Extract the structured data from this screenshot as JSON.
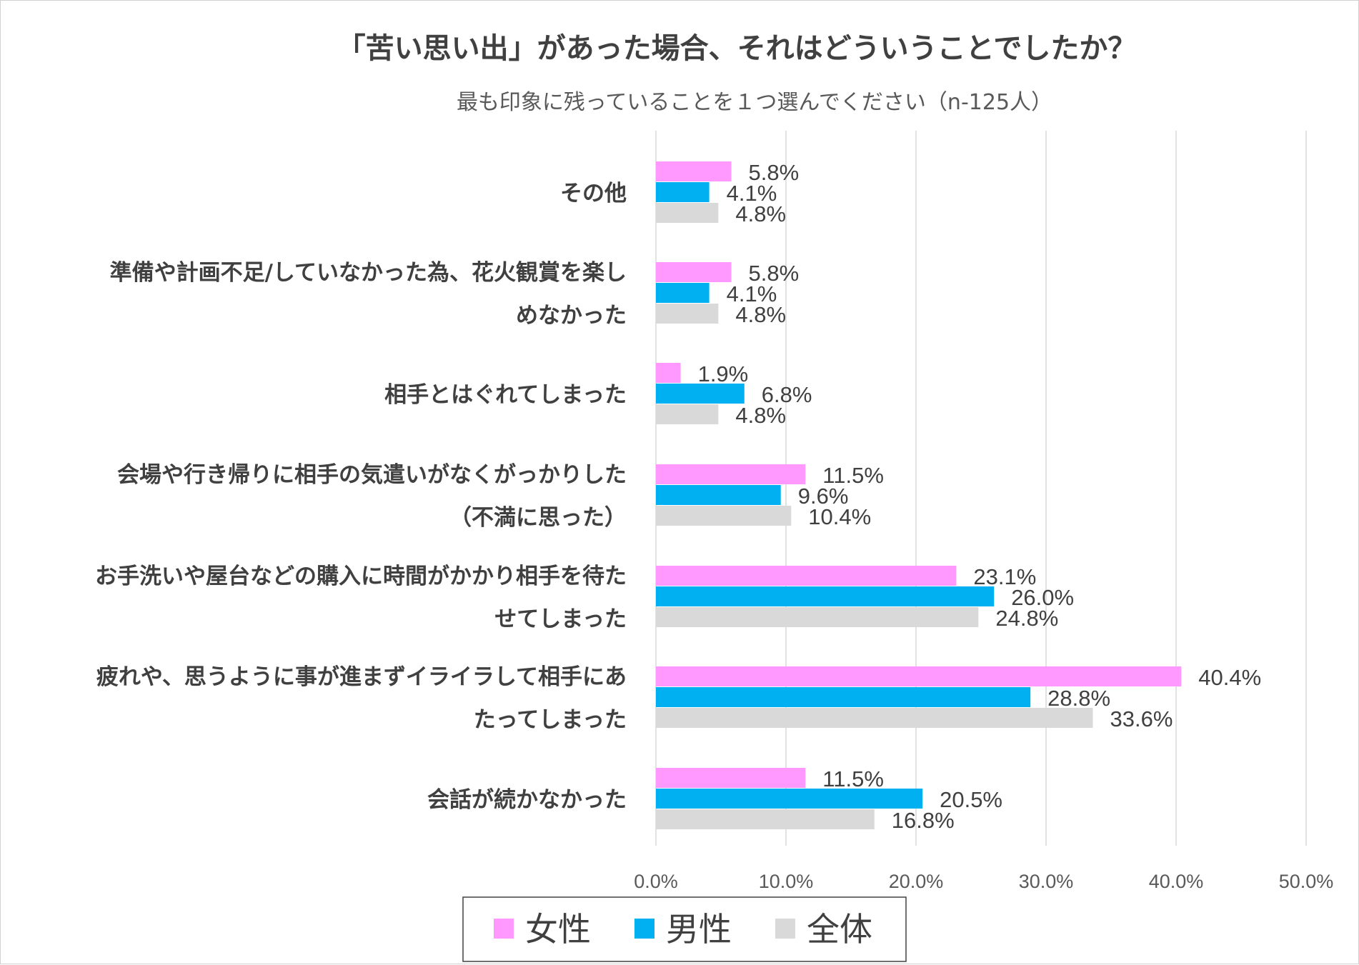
{
  "chart_data": {
    "type": "bar",
    "orientation": "horizontal",
    "title": "「苦い思い出」があった場合、それはどういうことでしたか？",
    "subtitle": "最も印象に残っていることを１つ選んでください（n-125人）",
    "categories": [
      [
        "その他"
      ],
      [
        "準備や計画不足/していなかった為、花火観賞を楽し",
        "めなかった"
      ],
      [
        "相手とはぐれてしまった"
      ],
      [
        "会場や行き帰りに相手の気遣いがなくがっかりした",
        "（不満に思った）"
      ],
      [
        "お手洗いや屋台などの購入に時間がかかり相手を待た",
        "せてしまった"
      ],
      [
        "疲れや、思うように事が進まずイライラして相手にあ",
        "たってしまった"
      ],
      [
        "会話が続かなかった"
      ]
    ],
    "series": [
      {
        "name": "女性",
        "color": "#ff99ff",
        "values": [
          5.8,
          5.8,
          1.9,
          11.5,
          23.1,
          40.4,
          11.5
        ],
        "labels": [
          "5.8%",
          "5.8%",
          "1.9%",
          "11.5%",
          "23.1%",
          "40.4%",
          "11.5%"
        ]
      },
      {
        "name": "男性",
        "color": "#00b0f0",
        "values": [
          4.1,
          4.1,
          6.8,
          9.6,
          26.0,
          28.8,
          20.5
        ],
        "labels": [
          "4.1%",
          "4.1%",
          "6.8%",
          "9.6%",
          "26.0%",
          "28.8%",
          "20.5%"
        ]
      },
      {
        "name": "全体",
        "color": "#d9d9d9",
        "values": [
          4.8,
          4.8,
          4.8,
          10.4,
          24.8,
          33.6,
          16.8
        ],
        "labels": [
          "4.8%",
          "4.8%",
          "4.8%",
          "10.4%",
          "24.8%",
          "33.6%",
          "16.8%"
        ]
      }
    ],
    "xlim": [
      0,
      50
    ],
    "xticks": [
      "0.0%",
      "10.0%",
      "20.0%",
      "30.0%",
      "40.0%",
      "50.0%"
    ],
    "grid": true,
    "legend": "bottom"
  }
}
